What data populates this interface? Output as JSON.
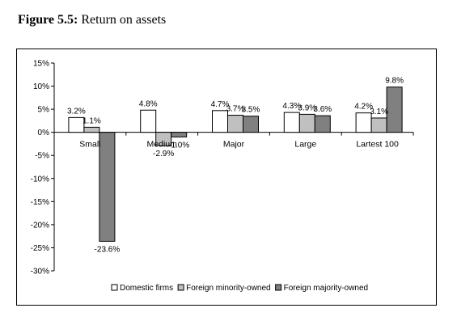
{
  "figure": {
    "number": "Figure 5.5:",
    "title": "Return on assets"
  },
  "chart_data": {
    "type": "bar",
    "categories": [
      "Small",
      "Medium",
      "Major",
      "Large",
      "Lartest 100"
    ],
    "series": [
      {
        "name": "Domestic firms",
        "values": [
          3.2,
          4.8,
          4.7,
          4.3,
          4.2
        ],
        "labels": [
          "3.2%",
          "4.8%",
          "4.7%",
          "4.3%",
          "4.2%"
        ],
        "color": "#ffffff"
      },
      {
        "name": "Foreign minority-owned",
        "values": [
          1.1,
          -2.9,
          3.7,
          3.9,
          3.1
        ],
        "labels": [
          "1.1%",
          "-2.9%",
          "3.7%",
          "3.9%",
          "3.1%"
        ],
        "color": "#c0c0c0"
      },
      {
        "name": "Foreign majority-owned",
        "values": [
          -23.6,
          -1.0,
          3.5,
          3.6,
          9.8
        ],
        "labels": [
          "-23.6%",
          "-1.0%",
          "3.5%",
          "3.6%",
          "9.8%"
        ],
        "color": "#808080"
      }
    ],
    "ylim": [
      -30,
      15
    ],
    "yticks": [
      15,
      10,
      5,
      0,
      -5,
      -10,
      -15,
      -20,
      -25,
      -30
    ],
    "ytick_labels": [
      "15%",
      "10%",
      "5%",
      "0%",
      "-5%",
      "-10%",
      "-15%",
      "-20%",
      "-25%",
      "-30%"
    ],
    "legend_position": "bottom",
    "grid": false
  }
}
